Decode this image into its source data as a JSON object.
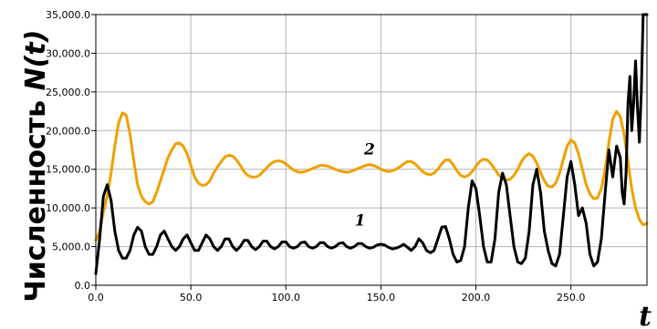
{
  "chart_data": {
    "type": "line",
    "ylabel_text": "Численность ",
    "ylabel_var": "N(t)",
    "xlabel": "t",
    "xlim": [
      0,
      290
    ],
    "ylim": [
      0,
      35000
    ],
    "x_ticks": [
      0,
      50,
      100,
      150,
      200,
      250
    ],
    "x_tick_labels": [
      "0.0",
      "50.0",
      "100.0",
      "150.0",
      "200.0",
      "250.0"
    ],
    "y_ticks": [
      0,
      5000,
      10000,
      15000,
      20000,
      25000,
      30000,
      35000
    ],
    "y_tick_labels": [
      "0.0",
      "5,000.0",
      "10,000.0",
      "15,000.0",
      "20,000.0",
      "25,000.0",
      "30,000.0",
      "35,000.0"
    ],
    "grid": true,
    "series": [
      {
        "name": "1",
        "color": "#000000",
        "label_at": [
          139,
          7700
        ],
        "points": [
          [
            0,
            1500
          ],
          [
            2,
            6000
          ],
          [
            4,
            11500
          ],
          [
            6,
            13000
          ],
          [
            8,
            11000
          ],
          [
            10,
            7000
          ],
          [
            12,
            4500
          ],
          [
            14,
            3500
          ],
          [
            16,
            3500
          ],
          [
            18,
            4500
          ],
          [
            20,
            6500
          ],
          [
            22,
            7500
          ],
          [
            24,
            7000
          ],
          [
            26,
            5000
          ],
          [
            28,
            4000
          ],
          [
            30,
            4000
          ],
          [
            32,
            5000
          ],
          [
            34,
            6500
          ],
          [
            36,
            7000
          ],
          [
            38,
            6000
          ],
          [
            40,
            5000
          ],
          [
            42,
            4500
          ],
          [
            44,
            5000
          ],
          [
            46,
            6000
          ],
          [
            48,
            6500
          ],
          [
            50,
            5500
          ],
          [
            52,
            4500
          ],
          [
            54,
            4500
          ],
          [
            56,
            5500
          ],
          [
            58,
            6500
          ],
          [
            60,
            6000
          ],
          [
            62,
            5000
          ],
          [
            64,
            4500
          ],
          [
            66,
            5000
          ],
          [
            68,
            6000
          ],
          [
            70,
            6000
          ],
          [
            72,
            5000
          ],
          [
            74,
            4500
          ],
          [
            76,
            5000
          ],
          [
            78,
            5800
          ],
          [
            80,
            5800
          ],
          [
            82,
            5000
          ],
          [
            84,
            4600
          ],
          [
            86,
            5000
          ],
          [
            88,
            5700
          ],
          [
            90,
            5700
          ],
          [
            92,
            5000
          ],
          [
            94,
            4700
          ],
          [
            96,
            5000
          ],
          [
            98,
            5600
          ],
          [
            100,
            5600
          ],
          [
            102,
            5000
          ],
          [
            104,
            4800
          ],
          [
            106,
            5000
          ],
          [
            108,
            5500
          ],
          [
            110,
            5600
          ],
          [
            112,
            5000
          ],
          [
            114,
            4800
          ],
          [
            116,
            5000
          ],
          [
            118,
            5500
          ],
          [
            120,
            5500
          ],
          [
            122,
            5000
          ],
          [
            124,
            4800
          ],
          [
            126,
            5000
          ],
          [
            128,
            5400
          ],
          [
            130,
            5500
          ],
          [
            132,
            5000
          ],
          [
            134,
            4800
          ],
          [
            136,
            5000
          ],
          [
            138,
            5400
          ],
          [
            140,
            5400
          ],
          [
            142,
            5000
          ],
          [
            144,
            4800
          ],
          [
            146,
            4900
          ],
          [
            148,
            5200
          ],
          [
            150,
            5300
          ],
          [
            152,
            5200
          ],
          [
            154,
            4900
          ],
          [
            156,
            4700
          ],
          [
            158,
            4800
          ],
          [
            160,
            5000
          ],
          [
            162,
            5300
          ],
          [
            164,
            4900
          ],
          [
            166,
            4500
          ],
          [
            168,
            5000
          ],
          [
            170,
            6000
          ],
          [
            172,
            5500
          ],
          [
            174,
            4500
          ],
          [
            176,
            4200
          ],
          [
            178,
            4500
          ],
          [
            180,
            6000
          ],
          [
            182,
            7500
          ],
          [
            184,
            7600
          ],
          [
            186,
            6000
          ],
          [
            188,
            4000
          ],
          [
            190,
            3000
          ],
          [
            192,
            3200
          ],
          [
            194,
            5000
          ],
          [
            196,
            10000
          ],
          [
            198,
            13500
          ],
          [
            200,
            12500
          ],
          [
            202,
            9000
          ],
          [
            204,
            5000
          ],
          [
            206,
            3000
          ],
          [
            208,
            3000
          ],
          [
            210,
            6000
          ],
          [
            212,
            12000
          ],
          [
            214,
            14500
          ],
          [
            216,
            13000
          ],
          [
            218,
            9000
          ],
          [
            220,
            5000
          ],
          [
            222,
            3000
          ],
          [
            224,
            2800
          ],
          [
            226,
            3500
          ],
          [
            228,
            7000
          ],
          [
            230,
            13000
          ],
          [
            232,
            15000
          ],
          [
            234,
            12000
          ],
          [
            236,
            7000
          ],
          [
            238,
            4500
          ],
          [
            240,
            2800
          ],
          [
            242,
            2500
          ],
          [
            244,
            4000
          ],
          [
            246,
            9000
          ],
          [
            248,
            14000
          ],
          [
            250,
            16000
          ],
          [
            252,
            13000
          ],
          [
            254,
            9000
          ],
          [
            256,
            10000
          ],
          [
            258,
            8000
          ],
          [
            260,
            4000
          ],
          [
            262,
            2500
          ],
          [
            264,
            3000
          ],
          [
            266,
            6000
          ],
          [
            268,
            12000
          ],
          [
            270,
            17500
          ],
          [
            272,
            14000
          ],
          [
            274,
            18000
          ],
          [
            276,
            16500
          ],
          [
            277,
            12000
          ],
          [
            278,
            10500
          ],
          [
            279,
            14500
          ],
          [
            280,
            23500
          ],
          [
            281,
            27000
          ],
          [
            282,
            20000
          ],
          [
            283,
            23500
          ],
          [
            284,
            29000
          ],
          [
            285,
            23000
          ],
          [
            286,
            18500
          ],
          [
            287,
            25000
          ],
          [
            288,
            35000
          ],
          [
            290,
            35000
          ]
        ]
      },
      {
        "name": "2",
        "color": "#f0a000",
        "label_at": [
          144,
          16900
        ],
        "points": [
          [
            0,
            5800
          ],
          [
            2,
            7000
          ],
          [
            4,
            9500
          ],
          [
            6,
            11500
          ],
          [
            8,
            14500
          ],
          [
            10,
            18000
          ],
          [
            12,
            21000
          ],
          [
            14,
            22300
          ],
          [
            16,
            22000
          ],
          [
            18,
            19500
          ],
          [
            20,
            16000
          ],
          [
            22,
            13000
          ],
          [
            24,
            11500
          ],
          [
            26,
            10800
          ],
          [
            28,
            10500
          ],
          [
            30,
            10800
          ],
          [
            32,
            12000
          ],
          [
            34,
            13500
          ],
          [
            36,
            15000
          ],
          [
            38,
            16500
          ],
          [
            40,
            17500
          ],
          [
            42,
            18300
          ],
          [
            44,
            18400
          ],
          [
            46,
            18000
          ],
          [
            48,
            17000
          ],
          [
            50,
            15500
          ],
          [
            52,
            14000
          ],
          [
            54,
            13200
          ],
          [
            56,
            12900
          ],
          [
            58,
            13000
          ],
          [
            60,
            13500
          ],
          [
            62,
            14500
          ],
          [
            64,
            15300
          ],
          [
            66,
            16000
          ],
          [
            68,
            16600
          ],
          [
            70,
            16800
          ],
          [
            72,
            16700
          ],
          [
            74,
            16200
          ],
          [
            76,
            15500
          ],
          [
            78,
            14700
          ],
          [
            80,
            14200
          ],
          [
            82,
            14000
          ],
          [
            84,
            14000
          ],
          [
            86,
            14200
          ],
          [
            88,
            14700
          ],
          [
            90,
            15200
          ],
          [
            92,
            15700
          ],
          [
            94,
            16000
          ],
          [
            96,
            16100
          ],
          [
            98,
            16000
          ],
          [
            100,
            15700
          ],
          [
            102,
            15300
          ],
          [
            104,
            14900
          ],
          [
            106,
            14700
          ],
          [
            108,
            14600
          ],
          [
            110,
            14700
          ],
          [
            112,
            14900
          ],
          [
            114,
            15100
          ],
          [
            116,
            15300
          ],
          [
            118,
            15500
          ],
          [
            120,
            15500
          ],
          [
            122,
            15400
          ],
          [
            124,
            15200
          ],
          [
            126,
            15000
          ],
          [
            128,
            14800
          ],
          [
            130,
            14700
          ],
          [
            132,
            14600
          ],
          [
            134,
            14700
          ],
          [
            136,
            14900
          ],
          [
            138,
            15100
          ],
          [
            140,
            15300
          ],
          [
            142,
            15500
          ],
          [
            144,
            15600
          ],
          [
            146,
            15500
          ],
          [
            148,
            15300
          ],
          [
            150,
            15000
          ],
          [
            152,
            14800
          ],
          [
            154,
            14700
          ],
          [
            156,
            14800
          ],
          [
            158,
            15000
          ],
          [
            160,
            15300
          ],
          [
            162,
            15700
          ],
          [
            164,
            16000
          ],
          [
            166,
            16000
          ],
          [
            168,
            15700
          ],
          [
            170,
            15200
          ],
          [
            172,
            14700
          ],
          [
            174,
            14400
          ],
          [
            176,
            14300
          ],
          [
            178,
            14500
          ],
          [
            180,
            15000
          ],
          [
            182,
            15700
          ],
          [
            184,
            16200
          ],
          [
            186,
            16200
          ],
          [
            188,
            15600
          ],
          [
            190,
            14800
          ],
          [
            192,
            14200
          ],
          [
            194,
            14000
          ],
          [
            196,
            14200
          ],
          [
            198,
            14700
          ],
          [
            200,
            15400
          ],
          [
            202,
            16000
          ],
          [
            204,
            16300
          ],
          [
            206,
            16200
          ],
          [
            208,
            15700
          ],
          [
            210,
            15000
          ],
          [
            212,
            14300
          ],
          [
            214,
            13800
          ],
          [
            216,
            13600
          ],
          [
            218,
            13700
          ],
          [
            220,
            14200
          ],
          [
            222,
            15000
          ],
          [
            224,
            16000
          ],
          [
            226,
            16700
          ],
          [
            228,
            17000
          ],
          [
            230,
            16700
          ],
          [
            232,
            15800
          ],
          [
            234,
            14600
          ],
          [
            236,
            13500
          ],
          [
            238,
            12800
          ],
          [
            240,
            12700
          ],
          [
            242,
            13200
          ],
          [
            244,
            14500
          ],
          [
            246,
            16300
          ],
          [
            248,
            18000
          ],
          [
            250,
            18800
          ],
          [
            252,
            18400
          ],
          [
            254,
            17000
          ],
          [
            256,
            15000
          ],
          [
            258,
            13000
          ],
          [
            260,
            11800
          ],
          [
            262,
            11200
          ],
          [
            264,
            11300
          ],
          [
            266,
            12500
          ],
          [
            268,
            15000
          ],
          [
            270,
            18500
          ],
          [
            272,
            21500
          ],
          [
            274,
            22500
          ],
          [
            276,
            21800
          ],
          [
            278,
            19500
          ],
          [
            280,
            16000
          ],
          [
            282,
            12500
          ],
          [
            284,
            10000
          ],
          [
            286,
            8500
          ],
          [
            288,
            7800
          ],
          [
            290,
            8000
          ]
        ]
      }
    ]
  }
}
